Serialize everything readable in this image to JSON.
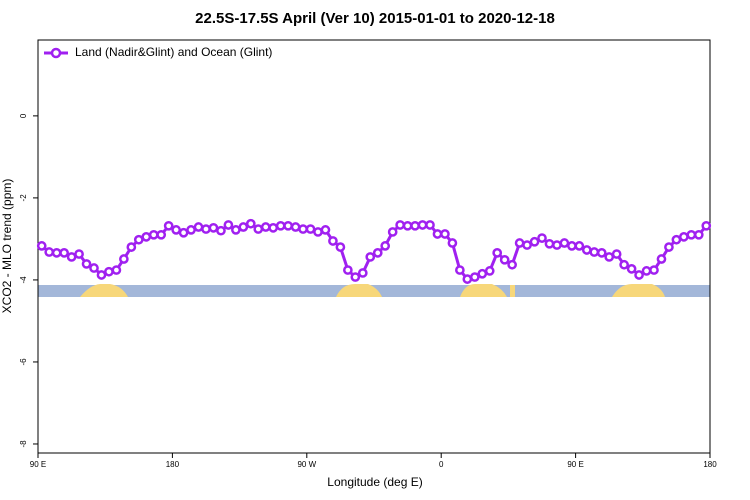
{
  "chart_data": {
    "type": "line",
    "title": "22.5S-17.5S April (Ver 10)   2015-01-01 to 2020-12-18",
    "x_label": "Longitude (deg E)",
    "y_label": "XCO2 - MLO trend (ppm)",
    "x": [
      92.5,
      97.5,
      102.5,
      107.5,
      112.5,
      117.5,
      122.5,
      127.5,
      132.5,
      137.5,
      142.5,
      147.5,
      152.5,
      157.5,
      162.5,
      167.5,
      172.5,
      177.5,
      182.5,
      187.5,
      192.5,
      197.5,
      202.5,
      207.5,
      212.5,
      217.5,
      222.5,
      227.5,
      232.5,
      237.5,
      242.5,
      247.5,
      252.5,
      257.5,
      262.5,
      267.5,
      272.5,
      277.5,
      282.5,
      287.5,
      292.5,
      297.5,
      302.5,
      307.5,
      312.5,
      317.5,
      322.5,
      327.5,
      332.5,
      337.5,
      342.5,
      347.5,
      352.5,
      357.5,
      362.5,
      367.5,
      372.5,
      377.5,
      382.5,
      387.5,
      392.5,
      397.5,
      402.5,
      407.5,
      412.5,
      417.5,
      422.5,
      427.5,
      432.5,
      437.5,
      442.5,
      447.5,
      452.5,
      457.5,
      462.5,
      467.5,
      472.5,
      477.5,
      482.5,
      487.5,
      492.5,
      497.5,
      502.5,
      507.5,
      512.5,
      517.5,
      522.5,
      527.5,
      532.5,
      537.5
    ],
    "series": [
      {
        "name": "Land (Nadir&Glint) and Ocean (Glint)",
        "color": "#a020f0",
        "values": [
          -3.17,
          -3.32,
          -3.34,
          -3.34,
          -3.44,
          -3.37,
          -3.61,
          -3.71,
          -3.88,
          -3.8,
          -3.76,
          -3.49,
          -3.2,
          -3.02,
          -2.95,
          -2.9,
          -2.9,
          -2.68,
          -2.78,
          -2.85,
          -2.78,
          -2.71,
          -2.76,
          -2.73,
          -2.8,
          -2.66,
          -2.78,
          -2.71,
          -2.63,
          -2.76,
          -2.71,
          -2.73,
          -2.68,
          -2.68,
          -2.71,
          -2.76,
          -2.76,
          -2.83,
          -2.78,
          -3.05,
          -3.2,
          -3.76,
          -3.93,
          -3.83,
          -3.44,
          -3.34,
          -3.17,
          -2.83,
          -2.66,
          -2.68,
          -2.68,
          -2.66,
          -2.66,
          -2.88,
          -2.88,
          -3.1,
          -3.76,
          -3.98,
          -3.93,
          -3.85,
          -3.78,
          -3.34,
          -3.51,
          -3.63,
          -3.1,
          -3.15,
          -3.07,
          -2.98,
          -3.12,
          -3.15,
          -3.1,
          -3.17,
          -3.17,
          -3.27,
          -3.32,
          -3.34,
          -3.44,
          -3.37,
          -3.63,
          -3.73,
          -3.88,
          -3.78,
          -3.76,
          -3.49,
          -3.2,
          -3.02,
          -2.95,
          -2.9,
          -2.9,
          -2.68
        ]
      }
    ],
    "xlim": [
      90,
      540
    ],
    "xticks": [
      {
        "value": 90,
        "label": "90 E"
      },
      {
        "value": 180,
        "label": "180"
      },
      {
        "value": 270,
        "label": "90 W"
      },
      {
        "value": 360,
        "label": "0"
      },
      {
        "value": 450,
        "label": "90 E"
      },
      {
        "value": 540,
        "label": "180"
      }
    ],
    "ylim": [
      -8.22,
      1.85
    ],
    "yticks": [
      0,
      -2,
      -4,
      -6,
      -8
    ],
    "legend": "top-left"
  }
}
